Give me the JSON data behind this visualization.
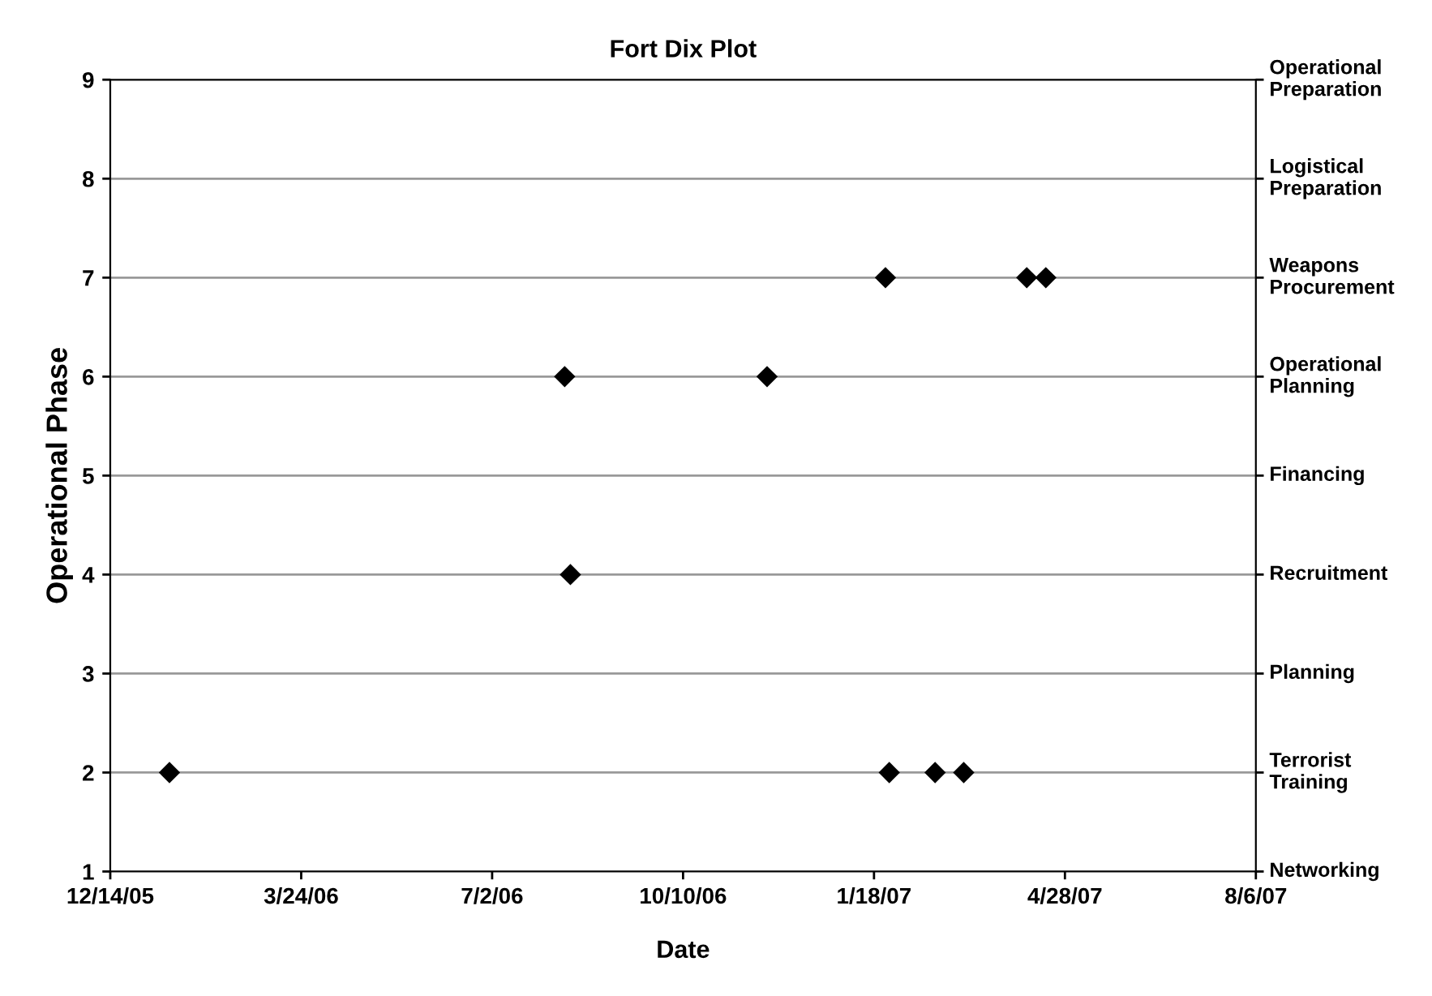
{
  "chart_data": {
    "type": "scatter",
    "title": "Fort Dix Plot",
    "xlabel": "Date",
    "ylabel": "Operational Phase",
    "x": [
      "2006-01-14",
      "2006-08-09",
      "2006-08-12",
      "2006-11-23",
      "2007-01-24",
      "2007-01-26",
      "2007-02-19",
      "2007-03-06",
      "2007-04-08",
      "2007-04-18"
    ],
    "series": [
      {
        "color": "#000000",
        "values": [
          2,
          6,
          4,
          6,
          7,
          2,
          2,
          2,
          7,
          7
        ]
      }
    ],
    "marker": "diamond",
    "grid": "y",
    "xlim": [
      "2005-12-14",
      "2007-08-06"
    ],
    "xticks": [
      {
        "value": "2005-12-14",
        "label": "12/14/05"
      },
      {
        "value": "2006-03-24",
        "label": "3/24/06"
      },
      {
        "value": "2006-07-02",
        "label": "7/2/06"
      },
      {
        "value": "2006-10-10",
        "label": "10/10/06"
      },
      {
        "value": "2007-01-18",
        "label": "1/18/07"
      },
      {
        "value": "2007-04-28",
        "label": "4/28/07"
      },
      {
        "value": "2007-08-06",
        "label": "8/6/07"
      }
    ],
    "ylim": [
      1,
      9
    ],
    "yticks": [
      1,
      2,
      3,
      4,
      5,
      6,
      7,
      8,
      9
    ],
    "annotations": [
      "Networking",
      "Terrorist\nTraining",
      "Planning",
      "Recruitment",
      "Financing",
      "Operational\nPlanning",
      "Weapons\nProcurement",
      "Logistical\nPreparation",
      "Operational\nPreparation"
    ]
  }
}
